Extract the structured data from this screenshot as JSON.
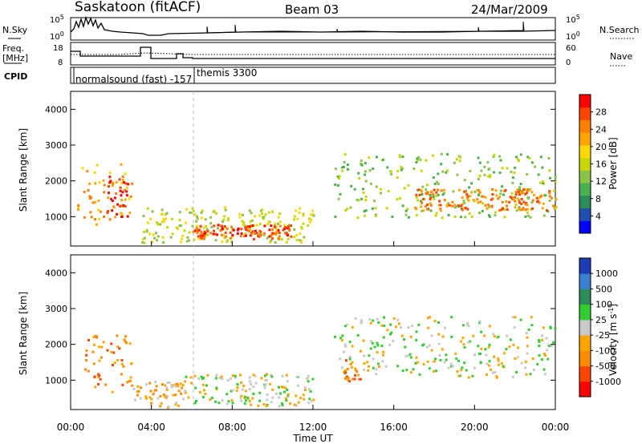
{
  "header": {
    "station": "Saskatoon (fitACF)",
    "beam": "Beam 03",
    "date": "24/Mar/2009"
  },
  "panels": {
    "nsky_label": "N.Sky",
    "nsky_ticks": [
      "10^5",
      "10^0"
    ],
    "nsearch_label": "N.Search",
    "nsearch_ticks": [
      "10^5",
      "10^0"
    ],
    "freq_label_1": "Freq.",
    "freq_label_2": "[MHz]",
    "freq_ticks": [
      "18",
      "8"
    ],
    "nave_label": "Nave",
    "nave_ticks": [
      "60",
      "0"
    ],
    "cpid_label": "CPID",
    "cpid_1": "normalsound (fast) -157",
    "cpid_2": "themis 3300"
  },
  "colors": {
    "power": [
      "#0000ff",
      "#1f4fb0",
      "#2e8b57",
      "#4caf50",
      "#8bc34a",
      "#c8d600",
      "#ffd700",
      "#ffa500",
      "#ff7f00",
      "#ff4500",
      "#ff0000"
    ],
    "velocity": [
      "#ff0000",
      "#ff4500",
      "#ff8c00",
      "#ffa500",
      "#c8c8c8",
      "#32cd32",
      "#2e8b57",
      "#3a7fd0",
      "#1e3cb4"
    ]
  },
  "chart_data": [
    {
      "type": "heatmap",
      "title": "",
      "xlabel": "Time UT",
      "ylabel": "Slant Range [km]",
      "colorbar_label": "Power [dB]",
      "colorbar_ticks": [
        "4",
        "8",
        "12",
        "16",
        "20",
        "24",
        "28"
      ],
      "xlim": [
        "00:00",
        "24:00"
      ],
      "ylim": [
        180,
        4500
      ],
      "x_ticks": [
        "00:00",
        "04:00",
        "08:00",
        "12:00",
        "16:00",
        "20:00",
        "00:00"
      ],
      "y_ticks": [
        "1000",
        "2000",
        "3000",
        "4000"
      ],
      "y_tick_values": [
        1000,
        2000,
        3000,
        4000
      ],
      "regions": [
        {
          "t0": 0.3,
          "t1": 3.0,
          "r0": 800,
          "r1": 2500,
          "level": 7
        },
        {
          "t0": 1.5,
          "t1": 2.8,
          "r0": 1000,
          "r1": 2200,
          "level": 10
        },
        {
          "t0": 3.5,
          "t1": 12.0,
          "r0": 300,
          "r1": 1300,
          "level": 5
        },
        {
          "t0": 6.0,
          "t1": 11.0,
          "r0": 400,
          "r1": 800,
          "level": 9
        },
        {
          "t0": 13.0,
          "t1": 24.0,
          "r0": 1000,
          "r1": 2800,
          "level": 4
        },
        {
          "t0": 17.0,
          "t1": 24.0,
          "r0": 1200,
          "r1": 1800,
          "level": 8
        }
      ]
    },
    {
      "type": "heatmap",
      "title": "",
      "xlabel": "Time UT",
      "ylabel": "Slant Range [km]",
      "colorbar_label": "Velocity [m s^-1]",
      "colorbar_ticks": [
        "-1000",
        "-500",
        "-100",
        "-25",
        "25",
        "100",
        "500",
        "1000"
      ],
      "xlim": [
        "00:00",
        "24:00"
      ],
      "ylim": [
        180,
        4500
      ],
      "x_ticks": [
        "00:00",
        "04:00",
        "08:00",
        "12:00",
        "16:00",
        "20:00",
        "00:00"
      ],
      "y_ticks": [
        "1000",
        "2000",
        "3000",
        "4000"
      ],
      "y_tick_values": [
        1000,
        2000,
        3000,
        4000
      ],
      "regions": [
        {
          "t0": 0.5,
          "t1": 3.0,
          "r0": 700,
          "r1": 2300,
          "level": 2
        },
        {
          "t0": 3.0,
          "t1": 5.5,
          "r0": 250,
          "r1": 1000,
          "level": 3
        },
        {
          "t0": 5.5,
          "t1": 12.0,
          "r0": 300,
          "r1": 1200,
          "level": 4
        },
        {
          "t0": 13.0,
          "t1": 24.0,
          "r0": 1100,
          "r1": 2800,
          "level": 4
        },
        {
          "t0": 13.5,
          "t1": 14.3,
          "r0": 1000,
          "r1": 1600,
          "level": 2
        }
      ]
    }
  ]
}
